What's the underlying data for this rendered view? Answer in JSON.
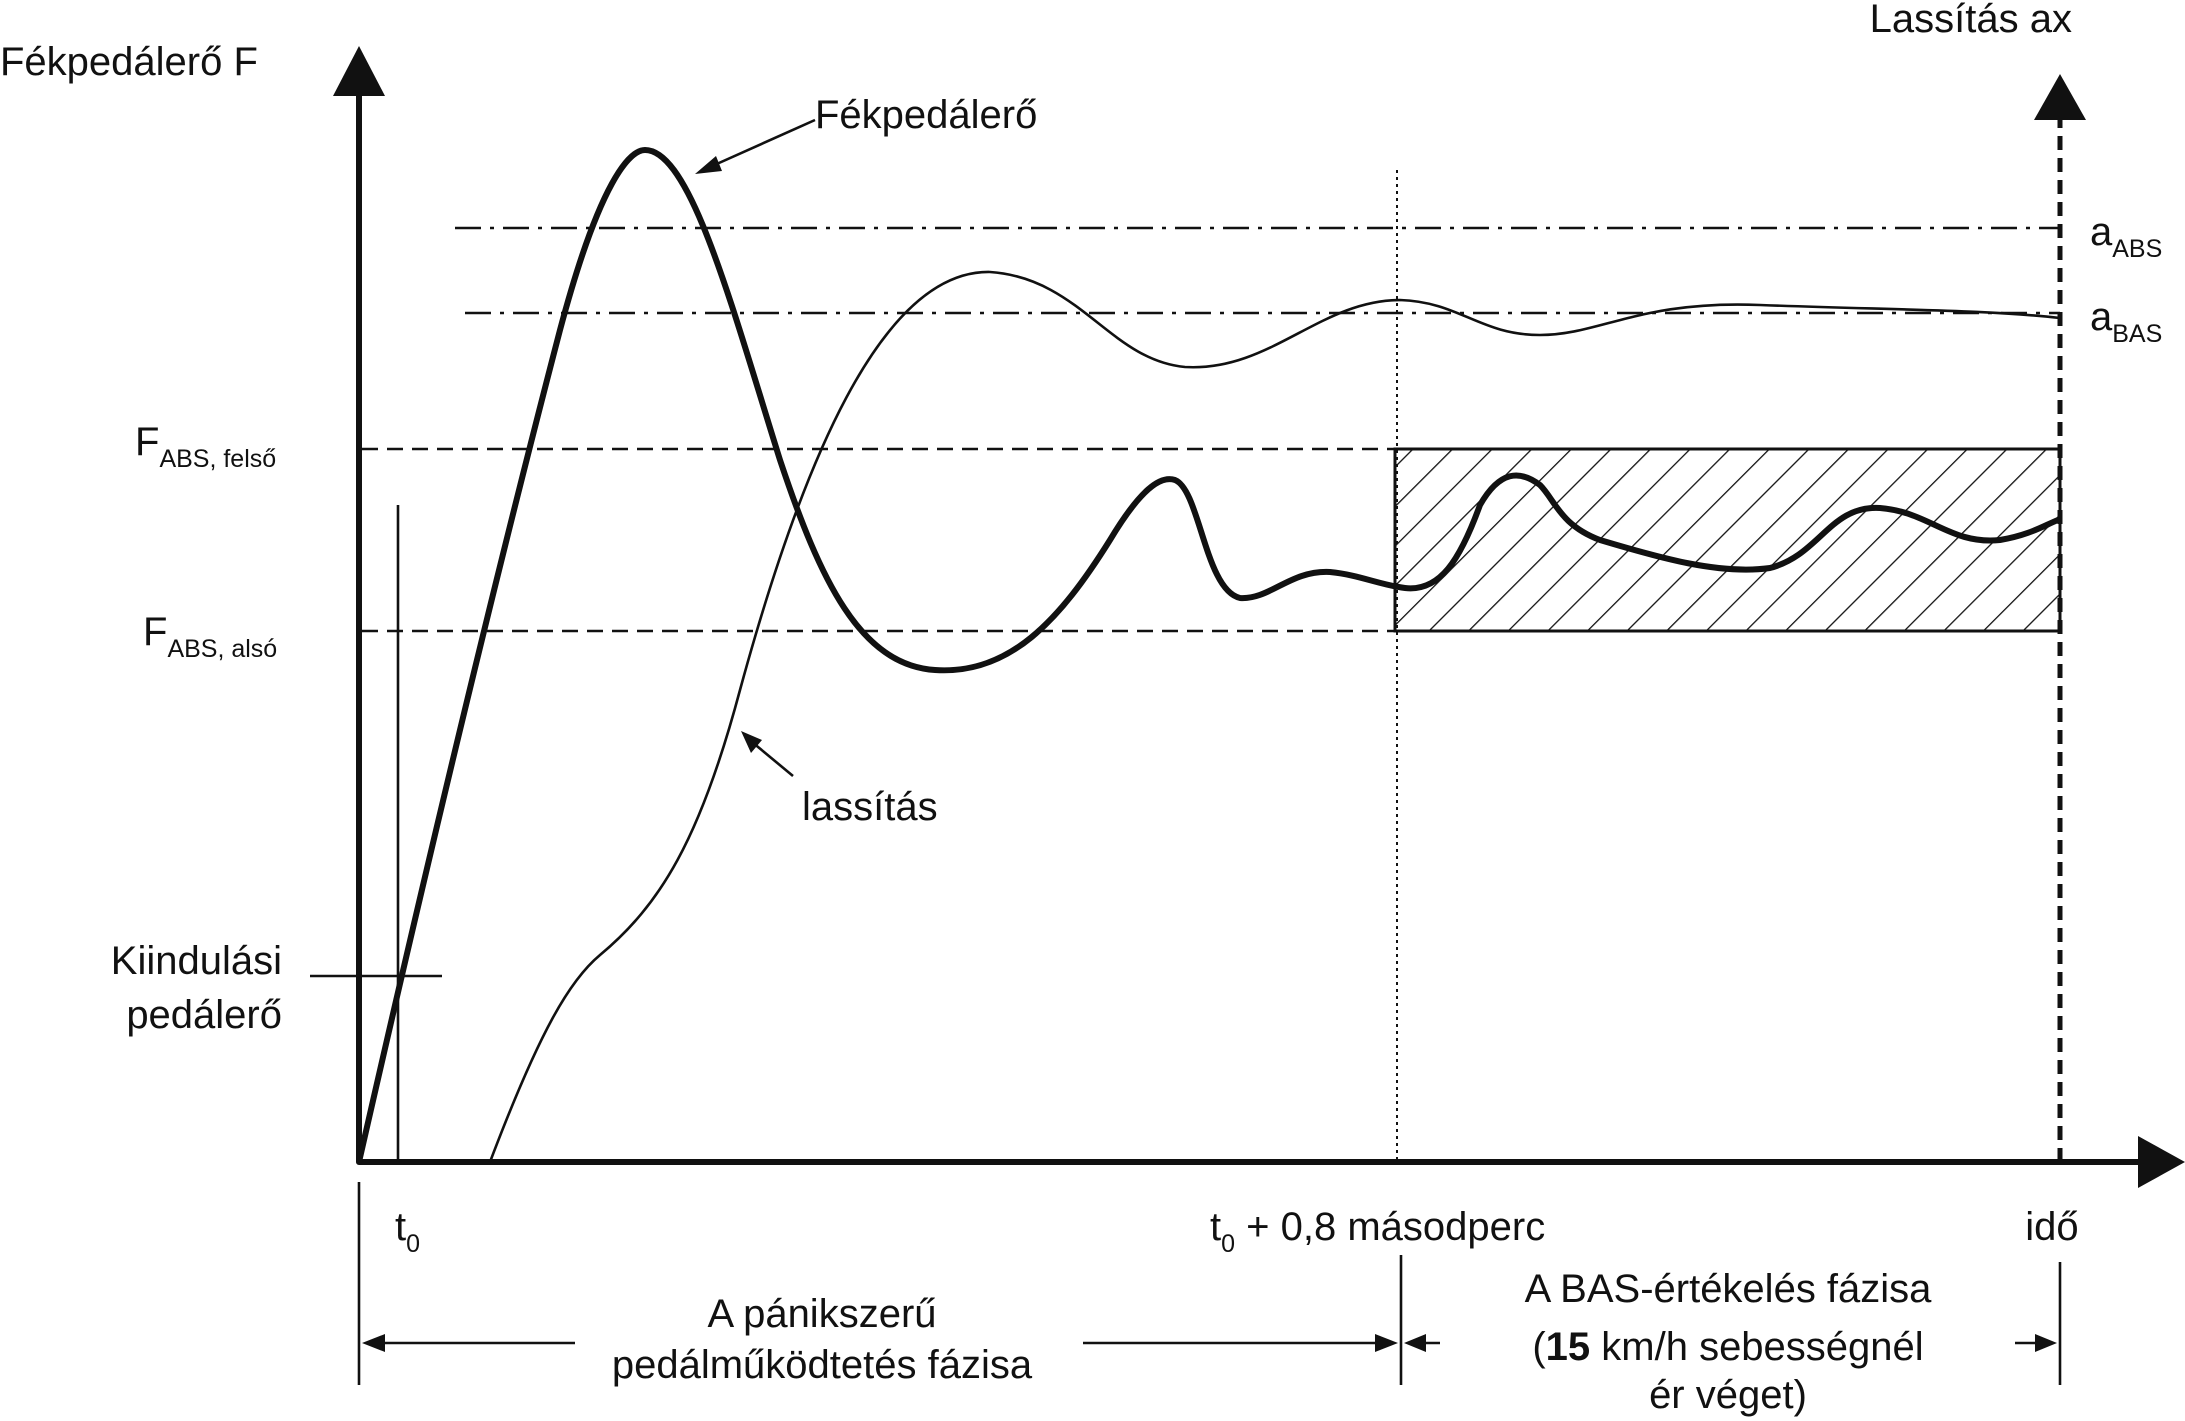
{
  "axes": {
    "y_left_label": "Fékpedálerő F",
    "y_right_label": "Lassítás ax",
    "x_label": "idő"
  },
  "levels": {
    "a_abs": {
      "main": "a",
      "sub": "ABS"
    },
    "a_bas": {
      "main": "a",
      "sub": "BAS"
    },
    "f_abs_upper": {
      "main": "F",
      "sub": "ABS, felső"
    },
    "f_abs_lower": {
      "main": "F",
      "sub": "ABS, alsó"
    }
  },
  "initial_force_label": [
    "Kiindulási",
    "pedálerő"
  ],
  "time_marks": {
    "t0": {
      "main": "t",
      "sub": "0"
    },
    "t0_plus": {
      "main": "t",
      "sub": "0",
      "rest": " + 0,8 másodperc"
    }
  },
  "curves": {
    "force_label": "Fékpedálerő",
    "decel_label": "lassítás"
  },
  "phases": {
    "panic": [
      "A pánikszerű",
      "pedálműködtetés fázisa"
    ],
    "bas_line1": "A BAS-értékelés fázisa",
    "bas_line2_open": "(",
    "bas_line2_bold": "15",
    "bas_line2_rest": " km/h sebességnél",
    "bas_line3": "ér véget)"
  }
}
